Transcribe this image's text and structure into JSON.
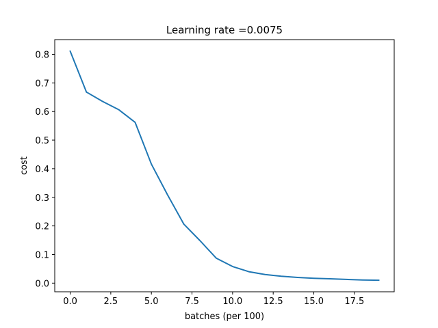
{
  "chart_data": {
    "type": "line",
    "title": "Learning rate =0.0075",
    "xlabel": "batches (per 100)",
    "ylabel": "cost",
    "xlim": [
      -0.95,
      19.95
    ],
    "ylim": [
      -0.0303,
      0.8513
    ],
    "xticks": [
      0.0,
      2.5,
      5.0,
      7.5,
      10.0,
      12.5,
      15.0,
      17.5
    ],
    "xtick_labels": [
      "0.0",
      "2.5",
      "5.0",
      "7.5",
      "10.0",
      "12.5",
      "15.0",
      "17.5"
    ],
    "yticks": [
      0.0,
      0.1,
      0.2,
      0.3,
      0.4,
      0.5,
      0.6,
      0.7,
      0.8
    ],
    "ytick_labels": [
      "0.0",
      "0.1",
      "0.2",
      "0.3",
      "0.4",
      "0.5",
      "0.6",
      "0.7",
      "0.8"
    ],
    "grid": false,
    "series": [
      {
        "color": "#1f77b4",
        "x": [
          0,
          1,
          2,
          3,
          4,
          5,
          6,
          7,
          8,
          9,
          10,
          11,
          12,
          13,
          14,
          15,
          16,
          17,
          18,
          19
        ],
        "y": [
          0.811,
          0.668,
          0.635,
          0.606,
          0.562,
          0.416,
          0.308,
          0.206,
          0.148,
          0.087,
          0.058,
          0.04,
          0.03,
          0.024,
          0.02,
          0.017,
          0.015,
          0.013,
          0.011,
          0.01
        ]
      }
    ]
  }
}
